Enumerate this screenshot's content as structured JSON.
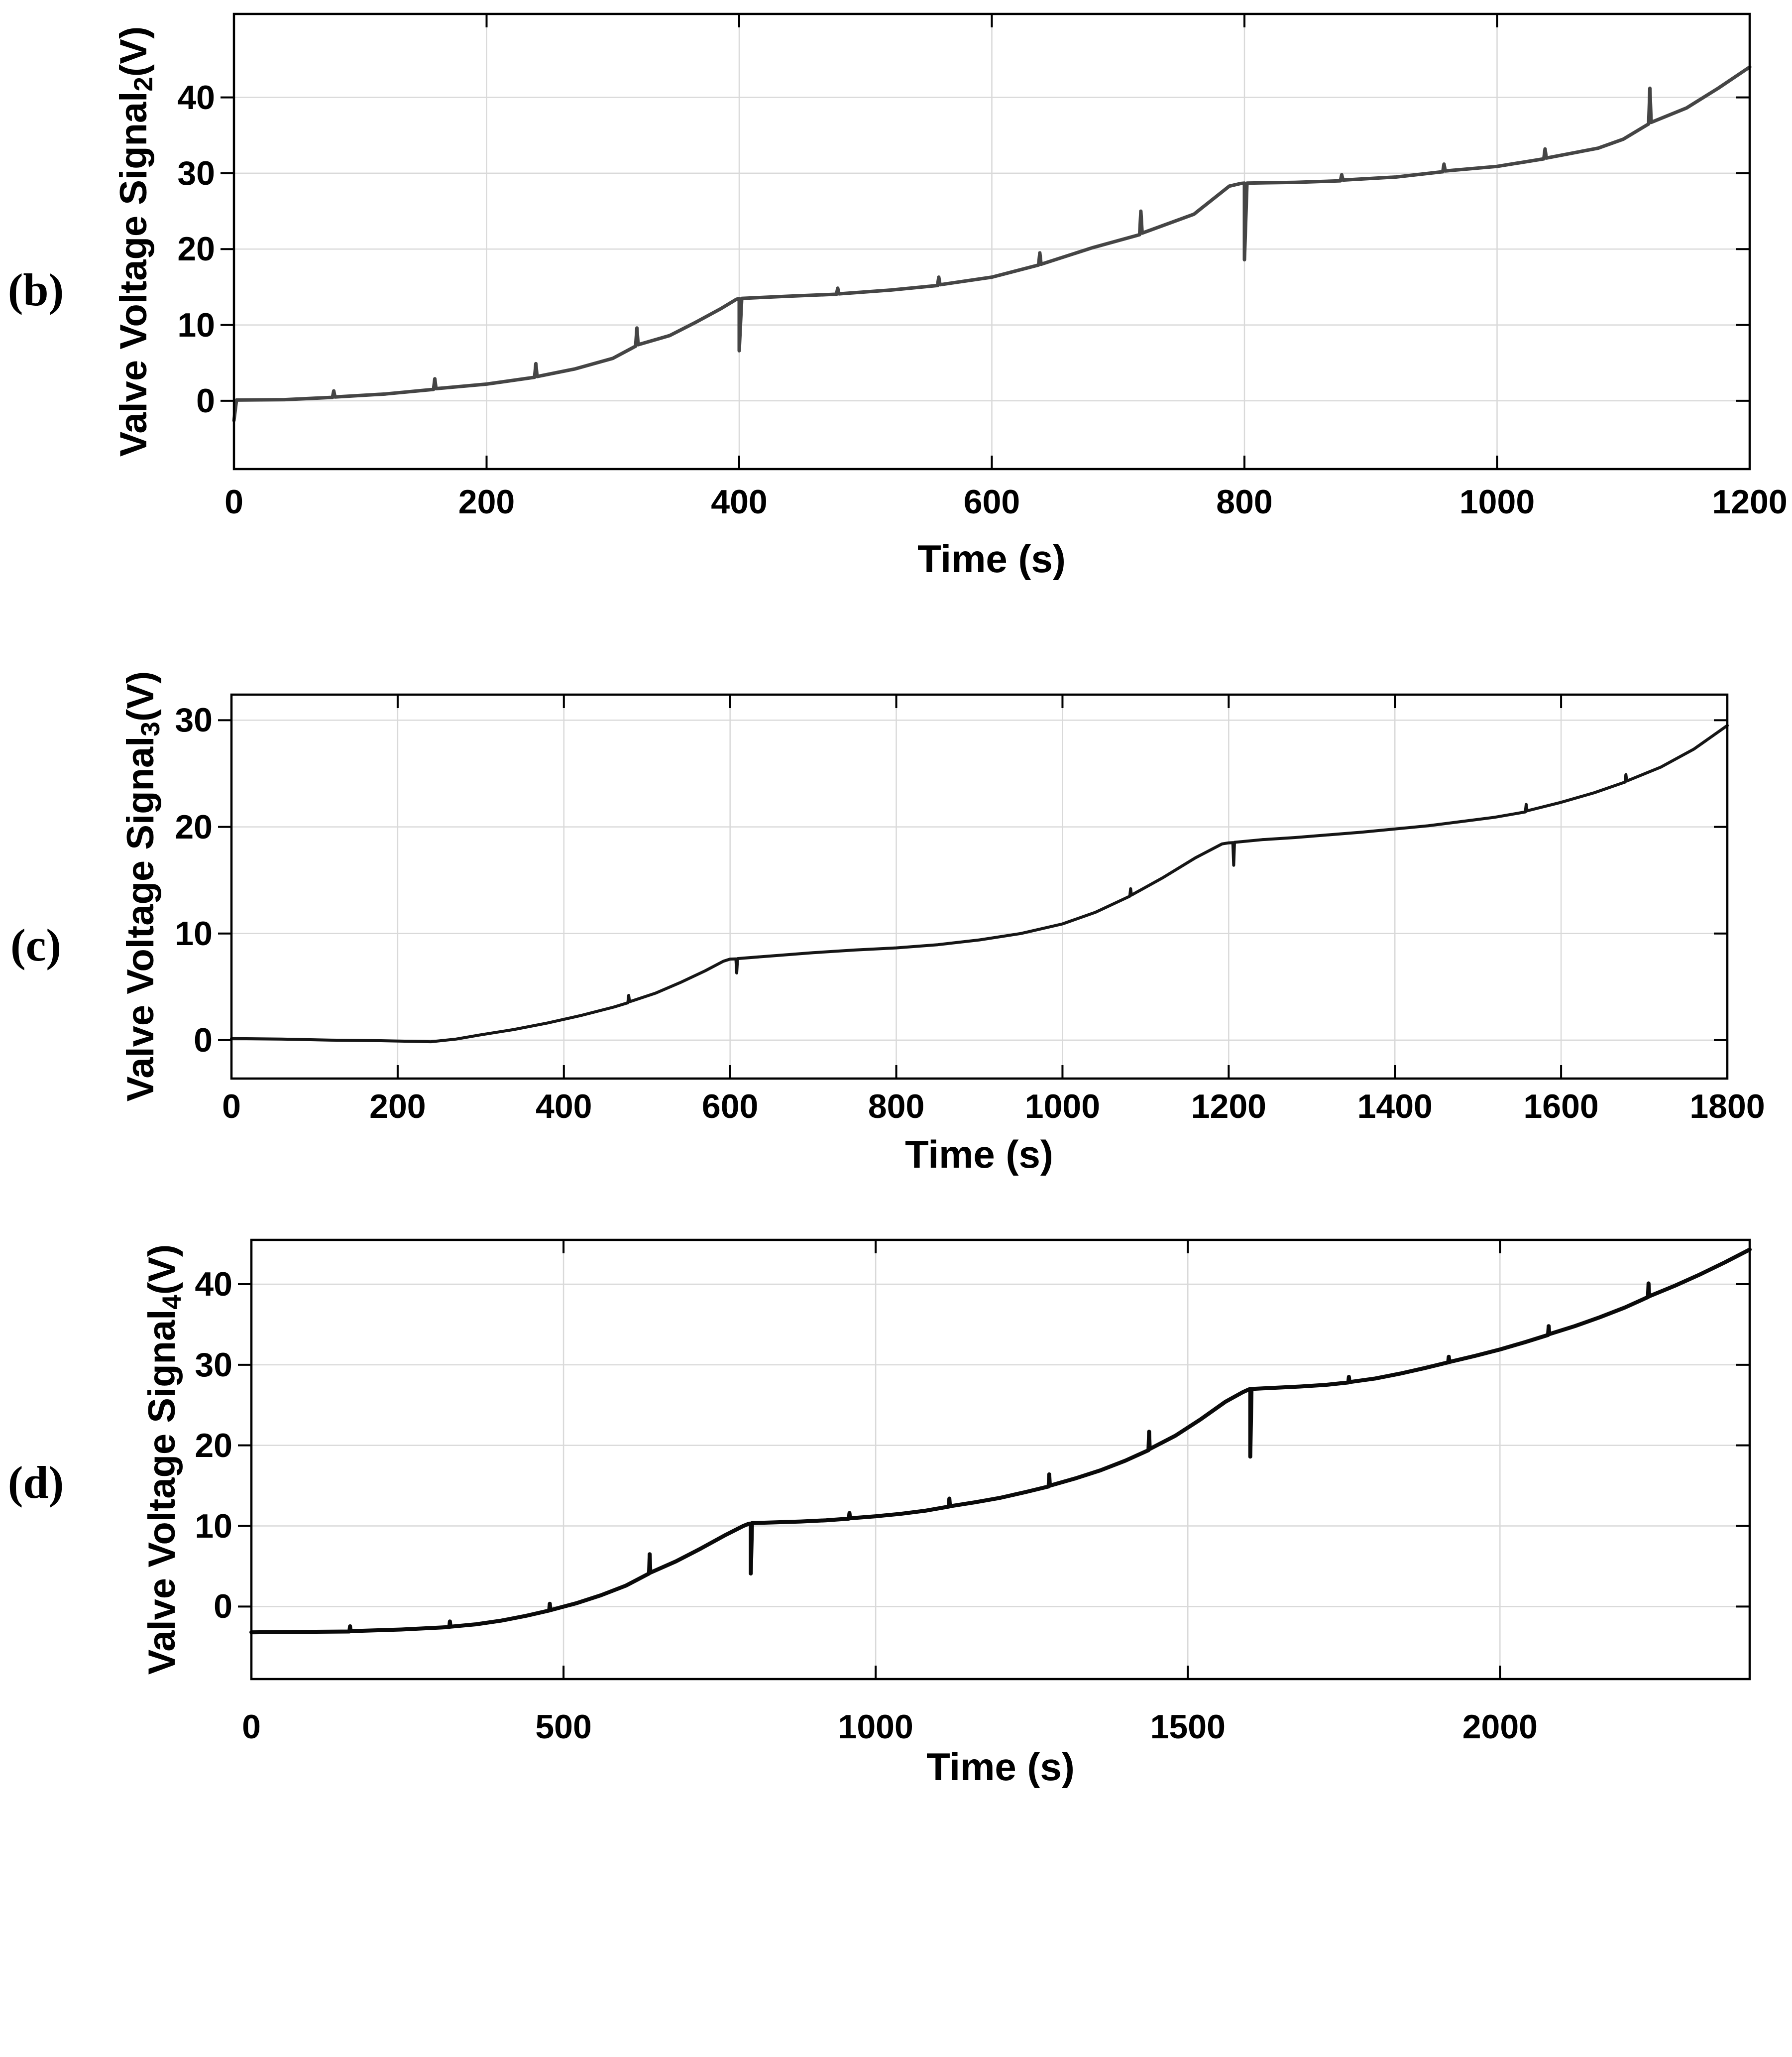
{
  "figure": {
    "background": "#ffffff",
    "grid_color": "#d9d9d9",
    "axis_color": "#000000"
  },
  "chart_data": [
    {
      "type": "line",
      "panel_label": "(b)",
      "ylabel": {
        "main": "Valve Voltage Signal",
        "sub": "2",
        "unit": "(V)"
      },
      "xlabel": "Time (s)",
      "xlim": [
        0,
        1200
      ],
      "ylim": [
        -9,
        51
      ],
      "xticks": [
        0,
        200,
        400,
        600,
        800,
        1000,
        1200
      ],
      "yticks": [
        0,
        10,
        20,
        30,
        40
      ],
      "grid": true,
      "legend": "none",
      "line_color": "#454545",
      "line_width": 7,
      "series": [
        {
          "name": "valve-voltage-signal-2",
          "points": [
            [
              0,
              -2.6
            ],
            [
              2,
              0.1
            ],
            [
              40,
              0.15
            ],
            [
              78,
              0.45
            ],
            [
              79,
              1.3
            ],
            [
              80,
              0.5
            ],
            [
              120,
              0.9
            ],
            [
              158,
              1.5
            ],
            [
              159,
              2.9
            ],
            [
              160,
              1.6
            ],
            [
              200,
              2.2
            ],
            [
              238,
              3.1
            ],
            [
              239,
              4.9
            ],
            [
              240,
              3.2
            ],
            [
              270,
              4.2
            ],
            [
              300,
              5.6
            ],
            [
              318,
              7.2
            ],
            [
              319,
              9.6
            ],
            [
              320,
              7.4
            ],
            [
              345,
              8.6
            ],
            [
              365,
              10.3
            ],
            [
              385,
              12.1
            ],
            [
              398,
              13.4
            ],
            [
              400,
              13.45
            ],
            [
              400,
              6.6
            ],
            [
              402,
              13.5
            ],
            [
              440,
              13.8
            ],
            [
              477,
              14.05
            ],
            [
              478,
              14.85
            ],
            [
              479,
              14.1
            ],
            [
              520,
              14.6
            ],
            [
              557,
              15.2
            ],
            [
              558,
              16.3
            ],
            [
              559,
              15.3
            ],
            [
              600,
              16.3
            ],
            [
              637,
              17.9
            ],
            [
              638,
              19.5
            ],
            [
              639,
              18.0
            ],
            [
              680,
              20.2
            ],
            [
              717,
              21.9
            ],
            [
              718,
              25.0
            ],
            [
              719,
              22.1
            ],
            [
              760,
              24.6
            ],
            [
              788,
              28.3
            ],
            [
              797,
              28.65
            ],
            [
              800,
              28.7
            ],
            [
              800,
              18.6
            ],
            [
              802,
              28.7
            ],
            [
              840,
              28.8
            ],
            [
              876,
              29.0
            ],
            [
              877,
              29.8
            ],
            [
              878,
              29.1
            ],
            [
              920,
              29.5
            ],
            [
              957,
              30.2
            ],
            [
              958,
              31.2
            ],
            [
              959,
              30.3
            ],
            [
              1000,
              30.9
            ],
            [
              1037,
              31.9
            ],
            [
              1038,
              33.2
            ],
            [
              1039,
              32.0
            ],
            [
              1080,
              33.3
            ],
            [
              1100,
              34.5
            ],
            [
              1120,
              36.5
            ],
            [
              1121,
              41.2
            ],
            [
              1122,
              36.7
            ],
            [
              1150,
              38.6
            ],
            [
              1175,
              41.2
            ],
            [
              1200,
              44.0
            ]
          ]
        }
      ]
    },
    {
      "type": "line",
      "panel_label": "(c)",
      "ylabel": {
        "main": "Valve Voltage Signal",
        "sub": "3",
        "unit": "(V)"
      },
      "xlabel": "Time (s)",
      "xlim": [
        0,
        1800
      ],
      "ylim": [
        -3.6,
        32.4
      ],
      "xticks": [
        0,
        200,
        400,
        600,
        800,
        1000,
        1200,
        1400,
        1600,
        1800
      ],
      "yticks": [
        0,
        10,
        20,
        30
      ],
      "grid": true,
      "legend": "none",
      "line_color": "#161616",
      "line_width": 6,
      "series": [
        {
          "name": "valve-voltage-signal-3",
          "points": [
            [
              0,
              0.15
            ],
            [
              60,
              0.1
            ],
            [
              120,
              0.0
            ],
            [
              180,
              -0.05
            ],
            [
              240,
              -0.15
            ],
            [
              270,
              0.1
            ],
            [
              300,
              0.5
            ],
            [
              340,
              1.0
            ],
            [
              380,
              1.6
            ],
            [
              420,
              2.3
            ],
            [
              460,
              3.1
            ],
            [
              477,
              3.5
            ],
            [
              478,
              4.2
            ],
            [
              479,
              3.6
            ],
            [
              510,
              4.4
            ],
            [
              540,
              5.4
            ],
            [
              570,
              6.5
            ],
            [
              592,
              7.4
            ],
            [
              600,
              7.6
            ],
            [
              607,
              7.62
            ],
            [
              608,
              6.3
            ],
            [
              609,
              7.65
            ],
            [
              650,
              7.9
            ],
            [
              700,
              8.2
            ],
            [
              750,
              8.45
            ],
            [
              800,
              8.65
            ],
            [
              850,
              8.95
            ],
            [
              900,
              9.4
            ],
            [
              950,
              10.0
            ],
            [
              1000,
              10.9
            ],
            [
              1040,
              12.0
            ],
            [
              1081,
              13.5
            ],
            [
              1082,
              14.2
            ],
            [
              1083,
              13.6
            ],
            [
              1120,
              15.2
            ],
            [
              1160,
              17.1
            ],
            [
              1192,
              18.4
            ],
            [
              1200,
              18.5
            ],
            [
              1205,
              18.52
            ],
            [
              1206,
              16.4
            ],
            [
              1207,
              18.55
            ],
            [
              1240,
              18.8
            ],
            [
              1280,
              19.0
            ],
            [
              1320,
              19.25
            ],
            [
              1360,
              19.5
            ],
            [
              1400,
              19.8
            ],
            [
              1440,
              20.1
            ],
            [
              1480,
              20.5
            ],
            [
              1520,
              20.9
            ],
            [
              1557,
              21.4
            ],
            [
              1558,
              22.1
            ],
            [
              1559,
              21.5
            ],
            [
              1600,
              22.3
            ],
            [
              1640,
              23.2
            ],
            [
              1677,
              24.2
            ],
            [
              1678,
              24.9
            ],
            [
              1679,
              24.3
            ],
            [
              1720,
              25.6
            ],
            [
              1760,
              27.3
            ],
            [
              1800,
              29.5
            ]
          ]
        }
      ]
    },
    {
      "type": "line",
      "panel_label": "(d)",
      "ylabel": {
        "main": "Valve Voltage Signal",
        "sub": "4",
        "unit": "(V)"
      },
      "xlabel": "Time (s)",
      "xlim": [
        0,
        2400
      ],
      "ylim": [
        -9,
        45.5
      ],
      "xticks": [
        0,
        500,
        1000,
        1500,
        2000
      ],
      "yticks": [
        0,
        10,
        20,
        30,
        40
      ],
      "grid": true,
      "legend": "none",
      "line_color": "#0a0a0a",
      "line_width": 8,
      "series": [
        {
          "name": "valve-voltage-signal-4",
          "points": [
            [
              0,
              -3.2
            ],
            [
              80,
              -3.15
            ],
            [
              157,
              -3.1
            ],
            [
              158,
              -2.45
            ],
            [
              159,
              -3.05
            ],
            [
              240,
              -2.85
            ],
            [
              317,
              -2.55
            ],
            [
              318,
              -1.85
            ],
            [
              319,
              -2.5
            ],
            [
              360,
              -2.2
            ],
            [
              400,
              -1.75
            ],
            [
              440,
              -1.15
            ],
            [
              477,
              -0.5
            ],
            [
              478,
              0.35
            ],
            [
              479,
              -0.45
            ],
            [
              520,
              0.4
            ],
            [
              560,
              1.4
            ],
            [
              600,
              2.6
            ],
            [
              637,
              4.1
            ],
            [
              638,
              6.5
            ],
            [
              639,
              4.2
            ],
            [
              680,
              5.6
            ],
            [
              720,
              7.2
            ],
            [
              760,
              8.9
            ],
            [
              788,
              10.0
            ],
            [
              797,
              10.28
            ],
            [
              800,
              10.3
            ],
            [
              800,
              4.1
            ],
            [
              802,
              10.35
            ],
            [
              840,
              10.45
            ],
            [
              880,
              10.55
            ],
            [
              920,
              10.7
            ],
            [
              957,
              10.9
            ],
            [
              958,
              11.6
            ],
            [
              959,
              10.95
            ],
            [
              1000,
              11.2
            ],
            [
              1040,
              11.5
            ],
            [
              1080,
              11.9
            ],
            [
              1117,
              12.4
            ],
            [
              1118,
              13.4
            ],
            [
              1119,
              12.45
            ],
            [
              1160,
              12.95
            ],
            [
              1200,
              13.5
            ],
            [
              1240,
              14.2
            ],
            [
              1277,
              14.9
            ],
            [
              1278,
              16.4
            ],
            [
              1279,
              15.0
            ],
            [
              1320,
              15.9
            ],
            [
              1360,
              16.9
            ],
            [
              1400,
              18.1
            ],
            [
              1437,
              19.4
            ],
            [
              1438,
              21.7
            ],
            [
              1439,
              19.55
            ],
            [
              1480,
              21.2
            ],
            [
              1520,
              23.2
            ],
            [
              1560,
              25.4
            ],
            [
              1588,
              26.6
            ],
            [
              1598,
              26.95
            ],
            [
              1600,
              27.0
            ],
            [
              1600,
              18.6
            ],
            [
              1602,
              27.0
            ],
            [
              1640,
              27.15
            ],
            [
              1680,
              27.3
            ],
            [
              1720,
              27.5
            ],
            [
              1757,
              27.8
            ],
            [
              1758,
              28.5
            ],
            [
              1759,
              27.85
            ],
            [
              1800,
              28.3
            ],
            [
              1840,
              28.9
            ],
            [
              1880,
              29.6
            ],
            [
              1917,
              30.3
            ],
            [
              1918,
              31.0
            ],
            [
              1919,
              30.35
            ],
            [
              1960,
              31.1
            ],
            [
              2000,
              31.9
            ],
            [
              2040,
              32.8
            ],
            [
              2077,
              33.7
            ],
            [
              2078,
              34.8
            ],
            [
              2079,
              33.8
            ],
            [
              2120,
              34.8
            ],
            [
              2160,
              35.9
            ],
            [
              2200,
              37.1
            ],
            [
              2237,
              38.4
            ],
            [
              2238,
              40.1
            ],
            [
              2239,
              38.5
            ],
            [
              2280,
              39.8
            ],
            [
              2320,
              41.2
            ],
            [
              2360,
              42.7
            ],
            [
              2400,
              44.3
            ]
          ]
        }
      ]
    }
  ]
}
